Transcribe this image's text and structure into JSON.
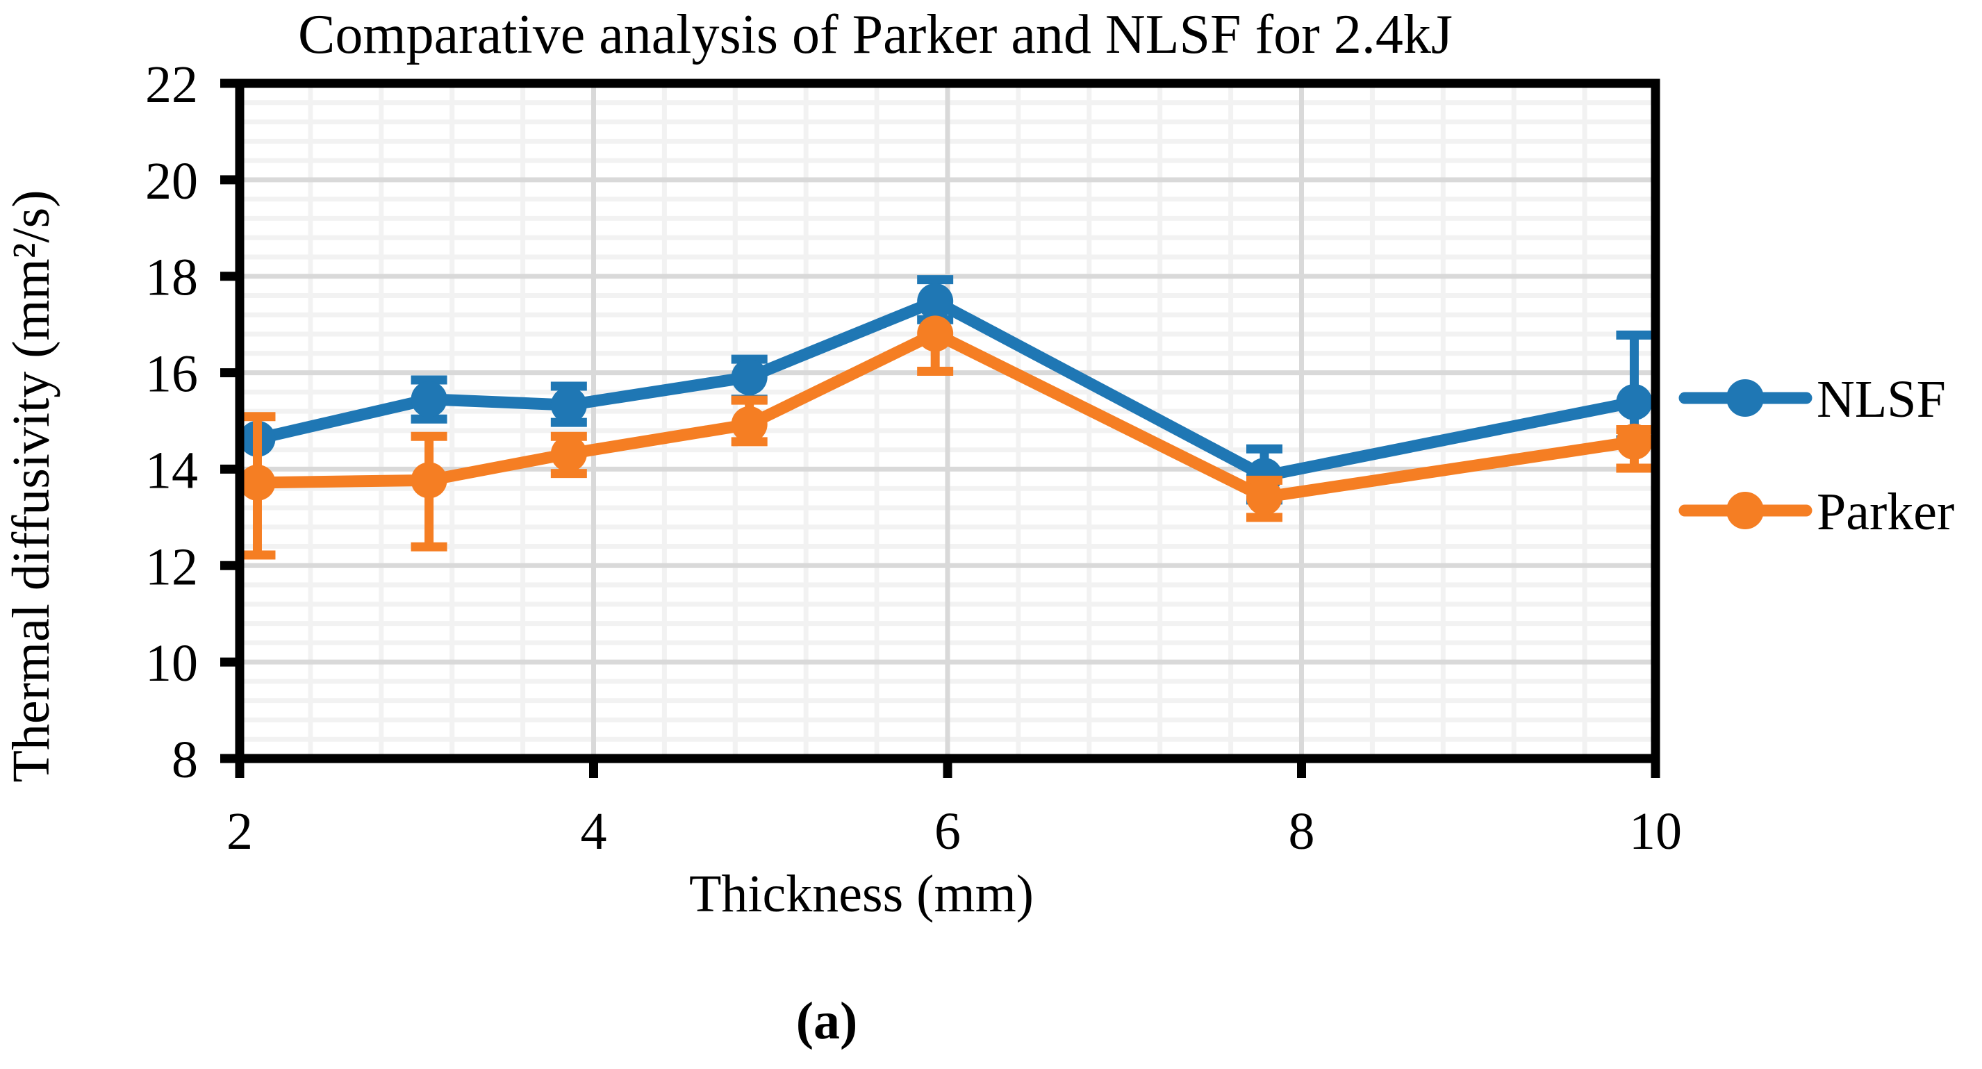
{
  "figure": {
    "caption": "(a)"
  },
  "colors": {
    "nlsf": "#1F77B4",
    "parker": "#F57E23",
    "axis": "#000000",
    "major_grid": "#D9D9D9",
    "minor_grid": "#F2F2F2",
    "background": "#FFFFFF"
  },
  "chart_data": {
    "type": "line",
    "title": "Comparative analysis of Parker and NLSF for 2.4kJ",
    "xlabel": "Thickness (mm)",
    "ylabel": "Thermal diffusivity (mm²/s)",
    "xlim": [
      2,
      10
    ],
    "ylim": [
      8,
      22
    ],
    "x_ticks": [
      2,
      4,
      6,
      8,
      10
    ],
    "y_ticks": [
      8,
      10,
      12,
      14,
      16,
      18,
      20,
      22
    ],
    "minor_step": 0.4,
    "grid": "major+minor",
    "legend_position": "right",
    "x": [
      2.1,
      3.07,
      3.86,
      4.88,
      5.93,
      7.79,
      9.88
    ],
    "series": [
      {
        "name": "NLSF",
        "color": "#1F77B4",
        "values": [
          14.63,
          15.45,
          15.33,
          15.91,
          17.48,
          13.86,
          15.39
        ],
        "err_up": [
          0,
          0.4,
          0.39,
          0.37,
          0.45,
          0.56,
          1.39
        ],
        "err_down": [
          0,
          0.41,
          0.36,
          0.46,
          0.38,
          0.5,
          0.78
        ]
      },
      {
        "name": "Parker",
        "color": "#F57E23",
        "values": [
          13.72,
          13.77,
          14.32,
          14.93,
          16.81,
          13.42,
          14.57
        ],
        "err_up": [
          1.37,
          0.91,
          0.36,
          0.5,
          0,
          0.35,
          0.25
        ],
        "err_down": [
          1.5,
          1.38,
          0.41,
          0.36,
          0.78,
          0.42,
          0.55
        ]
      }
    ]
  }
}
